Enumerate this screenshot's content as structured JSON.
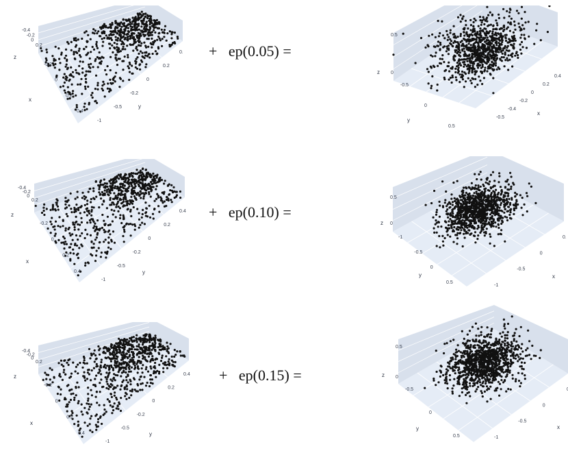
{
  "chart_data": [
    {
      "type": "scatter3d",
      "shape": "plane",
      "point_count": 700,
      "seed": 11,
      "z_ticks": [
        "0.2",
        "0",
        "-0.2",
        "-0.4"
      ],
      "x_ticks": [
        "-0.2",
        "0",
        "0.2",
        "0.4"
      ],
      "y_ticks": [
        "-1",
        "-0.5",
        "-0.2",
        "0",
        "0.2",
        "0.4"
      ],
      "axis_labels": {
        "x": "x",
        "y": "y",
        "z": "z"
      }
    },
    {
      "type": "scatter3d",
      "shape": "cloud",
      "point_count": 900,
      "seed": 21,
      "z_ticks": [
        "0.5",
        "0"
      ],
      "x_ticks": [
        "-0.5",
        "0",
        "0.5"
      ],
      "y_ticks": [
        "-0.5",
        "-0.4",
        "-0.2",
        "0",
        "0.2",
        "0.4"
      ],
      "axis_labels": {
        "x": "x",
        "y": "y",
        "z": "z"
      }
    },
    {
      "type": "scatter3d",
      "shape": "plane",
      "point_count": 750,
      "seed": 31,
      "z_ticks": [
        "0.2",
        "0",
        "-0.2",
        "-0.4"
      ],
      "x_ticks": [
        "-0.2",
        "0",
        "0.2",
        "0.4"
      ],
      "y_ticks": [
        "-1",
        "-0.5",
        "-0.2",
        "0",
        "0.2",
        "0.4"
      ],
      "axis_labels": {
        "x": "x",
        "y": "y",
        "z": "z"
      }
    },
    {
      "type": "scatter3d",
      "shape": "ball",
      "point_count": 1000,
      "seed": 41,
      "z_ticks": [
        "0.5",
        "0"
      ],
      "x_ticks": [
        "-1",
        "-0.5",
        "0",
        "0.5"
      ],
      "y_ticks": [
        "-1",
        "-0.5",
        "0",
        "0.5"
      ],
      "axis_labels": {
        "x": "x",
        "y": "y",
        "z": "z"
      }
    },
    {
      "type": "scatter3d",
      "shape": "plane",
      "point_count": 800,
      "seed": 51,
      "z_ticks": [
        "0.2",
        "0",
        "-0.2",
        "-0.4"
      ],
      "x_ticks": [
        "-0.2",
        "0",
        "0.2",
        "0.4"
      ],
      "y_ticks": [
        "-1",
        "-0.5",
        "-0.2",
        "0",
        "0.2",
        "0.4"
      ],
      "axis_labels": {
        "x": "x",
        "y": "y",
        "z": "z"
      }
    },
    {
      "type": "scatter3d",
      "shape": "ball",
      "point_count": 1100,
      "seed": 61,
      "z_ticks": [
        "0.5",
        "0"
      ],
      "x_ticks": [
        "-1",
        "-0.5",
        "0",
        "0.5"
      ],
      "y_ticks": [
        "-0.5",
        "0",
        "0.5"
      ],
      "axis_labels": {
        "x": "x",
        "y": "y",
        "z": "z"
      }
    }
  ],
  "equations": [
    {
      "plus": "+",
      "label": "ep(0.05) ="
    },
    {
      "plus": "+",
      "label": "ep(0.10) ="
    },
    {
      "plus": "+",
      "label": "ep(0.15) ="
    }
  ],
  "colors": {
    "pane": "#e5ecf6",
    "pane_dark": "#d8e0ec",
    "grid": "#ffffff",
    "marker": "#111111"
  }
}
